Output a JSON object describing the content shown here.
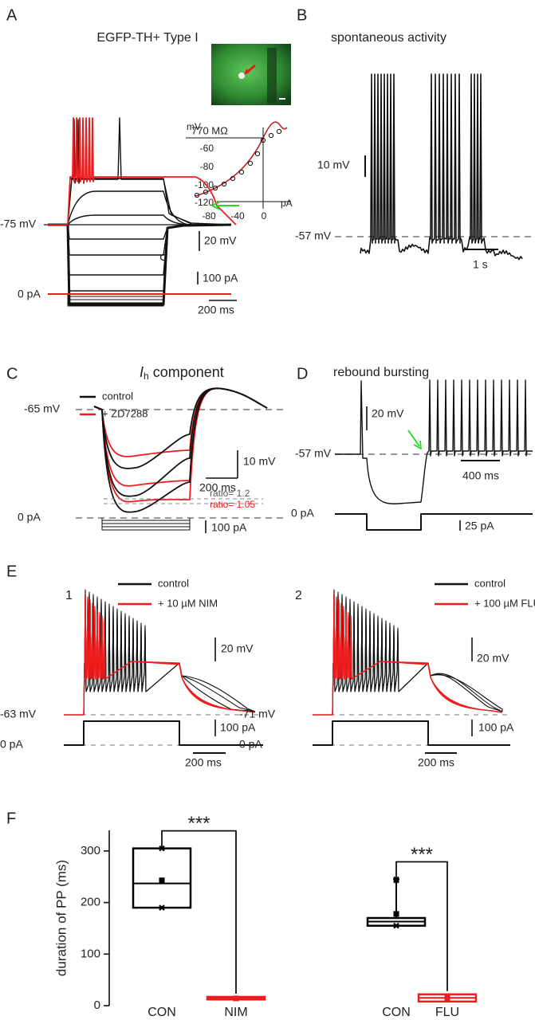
{
  "panels": {
    "A": {
      "label": "A",
      "title": "EGFP-TH+ Type I",
      "inset_unit_y": "mV",
      "inset_yticks": [
        "-60",
        "-80",
        "-100",
        "-120"
      ],
      "inset_xticks": [
        "-80",
        "-40",
        "0"
      ],
      "inset_unit_x": "pA",
      "resistance": "770 MΩ",
      "baseline": "-75 mV",
      "scale_v": "20 mV",
      "scale_i": "100 pA",
      "zero_current": "0 pA",
      "scale_t": "200 ms"
    },
    "B": {
      "label": "B",
      "title": "spontaneous activity",
      "scale_v": "10 mV",
      "baseline": "-57 mV",
      "scale_t": "1 s"
    },
    "C": {
      "label": "C",
      "title_italic": "I",
      "title_sub": "h",
      "title_rest": " component",
      "legend_control": "control",
      "legend_drug": "+ ZD7288",
      "baseline": "-65 mV",
      "scale_v": "10 mV",
      "scale_t": "200 ms",
      "ratio_control": "ratio= 1.2",
      "ratio_drug": "ratio= 1.05",
      "zero_current": "0 pA",
      "scale_i": "100 pA"
    },
    "D": {
      "label": "D",
      "title": "rebound bursting",
      "scale_v": "20 mV",
      "baseline": "-57 mV",
      "scale_t": "400 ms",
      "zero_current": "0 pA",
      "scale_i": "25 pA"
    },
    "E": {
      "label": "E",
      "sub": [
        {
          "number": "1",
          "legend_control": "control",
          "legend_drug": "+ 10 µM NIM",
          "scale_v": "20 mV",
          "baseline": "-63 mV",
          "scale_i": "100 pA",
          "zero_current": "0 pA",
          "scale_t": "200 ms"
        },
        {
          "number": "2",
          "legend_control": "control",
          "legend_drug": "+ 100 µM FLU",
          "scale_v": "20 mV",
          "baseline": "-71 mV",
          "scale_i": "100 pA",
          "zero_current": "0 pA",
          "scale_t": "200 ms"
        }
      ]
    },
    "F": {
      "label": "F"
    }
  },
  "chart_data": {
    "type": "box",
    "ylabel": "duration of PP (ms)",
    "ylim": [
      0,
      340
    ],
    "yticks": [
      0,
      100,
      200,
      300
    ],
    "categories": [
      "CON",
      "NIM",
      "CON",
      "FLU"
    ],
    "boxes": [
      {
        "q1": 190,
        "median": 237,
        "q3": 305,
        "whisker_low": 190,
        "whisker_high": 305,
        "mean": 243,
        "points": [
          190,
          305
        ],
        "color": "#000000"
      },
      {
        "q1": 12,
        "median": 14,
        "q3": 17,
        "whisker_low": 12,
        "whisker_high": 17,
        "mean": 14,
        "points": [
          14
        ],
        "color": "#ee1c1c"
      },
      {
        "q1": 155,
        "median": 163,
        "q3": 170,
        "whisker_low": 155,
        "whisker_high": 245,
        "mean": 178,
        "points": [
          155,
          243,
          245
        ],
        "color": "#000000"
      },
      {
        "q1": 8,
        "median": 15,
        "q3": 22,
        "whisker_low": 8,
        "whisker_high": 22,
        "mean": 15,
        "points": [
          12,
          18
        ],
        "color": "#ee1c1c"
      }
    ],
    "significance": [
      "***",
      "***"
    ]
  }
}
